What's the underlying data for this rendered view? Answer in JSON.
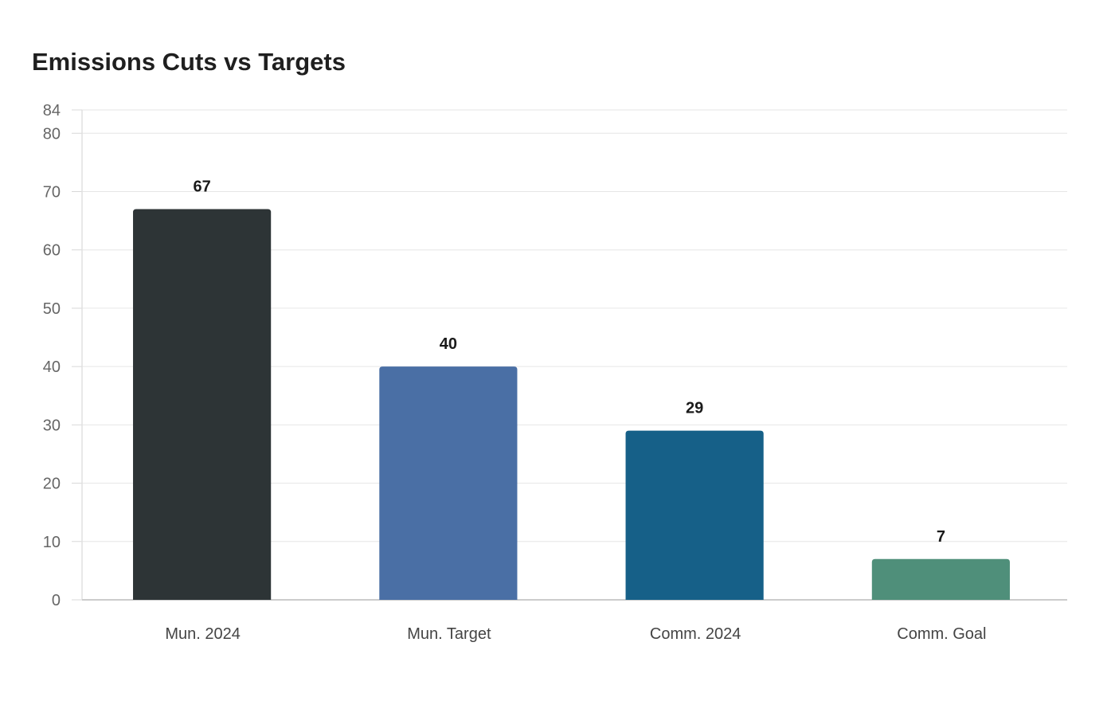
{
  "title": "Emissions Cuts vs Targets",
  "chart_data": {
    "type": "bar",
    "title": "Emissions Cuts vs Targets",
    "categories": [
      "Mun. 2024",
      "Mun. Target",
      "Comm. 2024",
      "Comm. Goal"
    ],
    "values": [
      67,
      40,
      29,
      7
    ],
    "bar_colors": [
      "#2d3436",
      "#4a6fa5",
      "#166088",
      "#4f8f7a"
    ],
    "ylim": [
      0,
      84
    ],
    "yticks": [
      0,
      10,
      20,
      30,
      40,
      50,
      60,
      70,
      80,
      84
    ],
    "xlabel": "",
    "ylabel": "",
    "grid": true,
    "data_labels": true,
    "legend": "none"
  }
}
